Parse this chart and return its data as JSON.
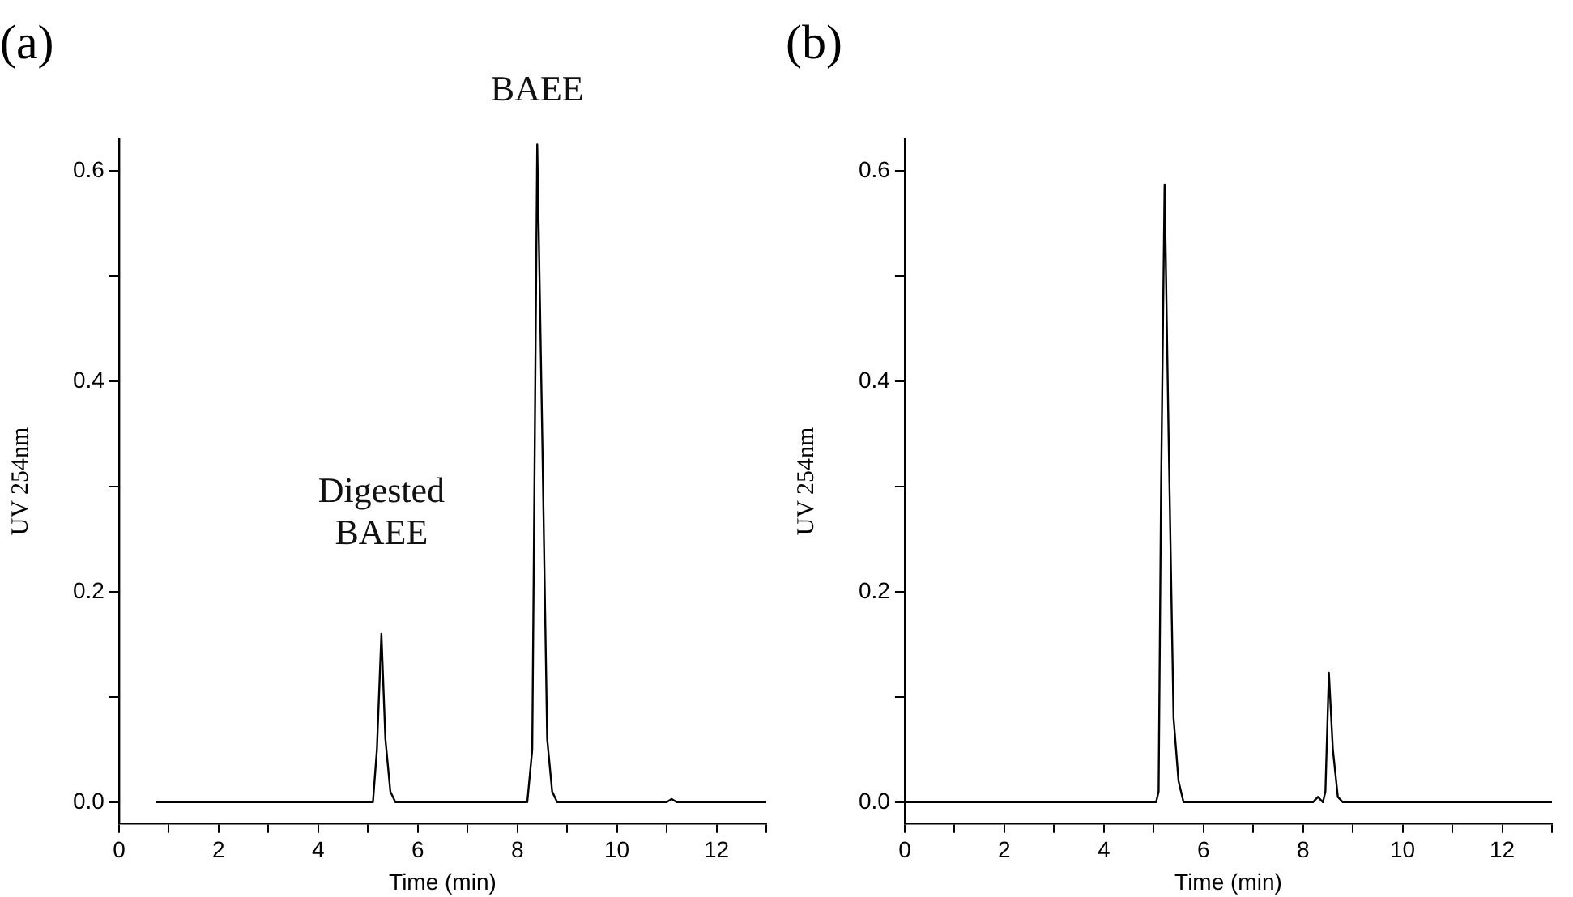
{
  "chart_data": [
    {
      "type": "line",
      "title": "(a)",
      "xlabel": "Time (min)",
      "ylabel": "UV 254nm",
      "color": "#000000",
      "marker": "none",
      "line_style": "solid",
      "grid": false,
      "legend": false,
      "x": [
        0.75,
        2.2,
        5.1,
        5.18,
        5.27,
        5.35,
        5.45,
        5.55,
        8.2,
        8.3,
        8.4,
        8.5,
        8.6,
        8.7,
        8.8,
        11.0,
        11.1,
        11.2,
        13
      ],
      "values": [
        0,
        0,
        0,
        0.05,
        0.16,
        0.06,
        0.01,
        0,
        0,
        0.05,
        0.625,
        0.35,
        0.06,
        0.01,
        0,
        0,
        0.003,
        0,
        0
      ],
      "xlim": [
        0,
        13
      ],
      "xticks": [
        0,
        {
          "value": 1,
          "label": null
        },
        2,
        {
          "value": 3,
          "label": null
        },
        4,
        {
          "value": 5,
          "label": null
        },
        6,
        {
          "value": 7,
          "label": null
        },
        8,
        {
          "value": 9,
          "label": null
        },
        10,
        {
          "value": 11,
          "label": null
        },
        12,
        {
          "value": 13,
          "label": null
        }
      ],
      "ylim": [
        -0.02,
        0.63
      ],
      "yticks": [
        {
          "value": 0,
          "label": "0.0"
        },
        {
          "value": 0.1,
          "label": null
        },
        0.2,
        {
          "value": 0.3,
          "label": null
        },
        0.4,
        {
          "value": 0.5,
          "label": null
        },
        0.6
      ],
      "annotations": [
        {
          "text": "Digested\nBAEE",
          "x": 5.27,
          "y": 0.16
        },
        {
          "text": "BAEE",
          "x": 8.4,
          "y": 0.625
        }
      ]
    },
    {
      "type": "line",
      "title": "(b)",
      "xlabel": "Time (min)",
      "ylabel": "UV 254nm",
      "color": "#000000",
      "marker": "none",
      "line_style": "solid",
      "grid": false,
      "legend": false,
      "x": [
        0,
        4.9,
        5.05,
        5.1,
        5.15,
        5.22,
        5.3,
        5.4,
        5.5,
        5.6,
        8.2,
        8.3,
        8.4,
        8.45,
        8.52,
        8.6,
        8.7,
        8.8,
        13
      ],
      "values": [
        0,
        0,
        0,
        0.01,
        0.3,
        0.587,
        0.35,
        0.08,
        0.02,
        0,
        0,
        0.005,
        0,
        0.01,
        0.123,
        0.05,
        0.005,
        0,
        0
      ],
      "xlim": [
        0,
        13
      ],
      "xticks": [
        0,
        {
          "value": 1,
          "label": null
        },
        2,
        {
          "value": 3,
          "label": null
        },
        4,
        {
          "value": 5,
          "label": null
        },
        6,
        {
          "value": 7,
          "label": null
        },
        8,
        {
          "value": 9,
          "label": null
        },
        10,
        {
          "value": 11,
          "label": null
        },
        12,
        {
          "value": 13,
          "label": null
        }
      ],
      "ylim": [
        -0.02,
        0.63
      ],
      "yticks": [
        {
          "value": 0,
          "label": "0.0"
        },
        {
          "value": 0.1,
          "label": null
        },
        0.2,
        {
          "value": 0.3,
          "label": null
        },
        0.4,
        {
          "value": 0.5,
          "label": null
        },
        0.6
      ]
    }
  ]
}
